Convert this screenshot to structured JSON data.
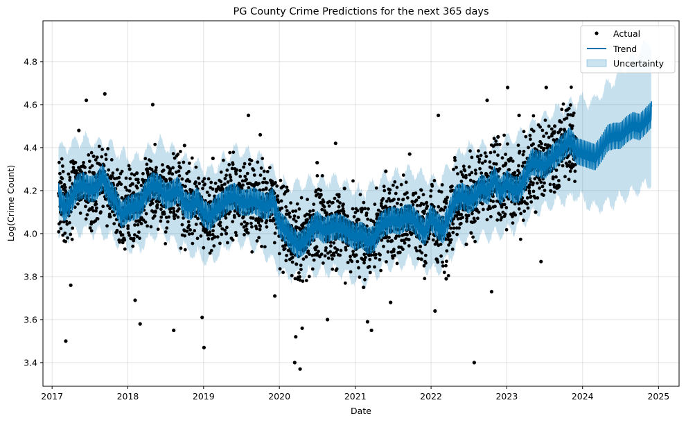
{
  "chart_data": {
    "type": "line",
    "title": "PG County Crime Predictions for the next 365 days",
    "xlabel": "Date",
    "ylabel": "Log(Crime Count)",
    "xlim": [
      "2016-11-18",
      "2025-04-10"
    ],
    "ylim": [
      3.29,
      4.99
    ],
    "grid": true,
    "legend_position": "top-right",
    "x_ticks": [
      "2017",
      "2018",
      "2019",
      "2020",
      "2021",
      "2022",
      "2023",
      "2024",
      "2025"
    ],
    "y_ticks": [
      "3.4",
      "3.6",
      "3.8",
      "4.0",
      "4.2",
      "4.4",
      "4.6",
      "4.8"
    ],
    "legend": [
      {
        "label": "Actual",
        "marker": "dot"
      },
      {
        "label": "Trend",
        "marker": "line"
      },
      {
        "label": "Uncertainty",
        "marker": "band"
      }
    ],
    "colors": {
      "actual": "#000000",
      "trend": "#0072b2",
      "uncertainty": "#0072b2"
    },
    "history_end": "2023-11-30",
    "forecast_end": "2024-11-29",
    "series": [
      {
        "name": "Trend",
        "x": [
          "2017-02-01",
          "2017-03-01",
          "2017-04-01",
          "2017-05-01",
          "2017-06-01",
          "2017-07-01",
          "2017-08-01",
          "2017-09-01",
          "2017-10-01",
          "2017-11-01",
          "2017-12-01",
          "2018-01-01",
          "2018-02-01",
          "2018-03-01",
          "2018-04-01",
          "2018-05-01",
          "2018-06-01",
          "2018-07-01",
          "2018-08-01",
          "2018-09-01",
          "2018-10-01",
          "2018-11-01",
          "2018-12-01",
          "2019-01-01",
          "2019-02-01",
          "2019-03-01",
          "2019-04-01",
          "2019-05-01",
          "2019-06-01",
          "2019-07-01",
          "2019-08-01",
          "2019-09-01",
          "2019-10-01",
          "2019-11-01",
          "2019-12-01",
          "2020-01-01",
          "2020-02-01",
          "2020-03-01",
          "2020-04-01",
          "2020-05-01",
          "2020-06-01",
          "2020-07-01",
          "2020-08-01",
          "2020-09-01",
          "2020-10-01",
          "2020-11-01",
          "2020-12-01",
          "2021-01-01",
          "2021-02-01",
          "2021-03-01",
          "2021-04-01",
          "2021-05-01",
          "2021-06-01",
          "2021-07-01",
          "2021-08-01",
          "2021-09-01",
          "2021-10-01",
          "2021-11-01",
          "2021-12-01",
          "2022-01-01",
          "2022-02-01",
          "2022-03-01",
          "2022-04-01",
          "2022-05-01",
          "2022-06-01",
          "2022-07-01",
          "2022-08-01",
          "2022-09-01",
          "2022-10-01",
          "2022-11-01",
          "2022-12-01",
          "2023-01-01",
          "2023-02-01",
          "2023-03-01",
          "2023-04-01",
          "2023-05-01",
          "2023-06-01",
          "2023-07-01",
          "2023-08-01",
          "2023-09-01",
          "2023-10-01",
          "2023-11-01",
          "2023-12-01",
          "2024-01-01",
          "2024-02-01",
          "2024-03-01",
          "2024-04-01",
          "2024-05-01",
          "2024-06-01",
          "2024-07-01",
          "2024-08-01",
          "2024-09-01",
          "2024-10-01",
          "2024-11-01",
          "2024-11-29"
        ],
        "y": [
          4.18,
          4.12,
          4.16,
          4.22,
          4.23,
          4.21,
          4.22,
          4.27,
          4.2,
          4.16,
          4.09,
          4.12,
          4.13,
          4.14,
          4.2,
          4.23,
          4.22,
          4.18,
          4.19,
          4.21,
          4.14,
          4.13,
          4.16,
          4.1,
          4.08,
          4.12,
          4.14,
          4.17,
          4.18,
          4.15,
          4.15,
          4.16,
          4.14,
          4.13,
          4.16,
          4.05,
          4.02,
          3.98,
          3.95,
          3.97,
          4.02,
          4.05,
          4.02,
          4.03,
          4.04,
          4.03,
          4.01,
          3.99,
          4.0,
          3.97,
          3.98,
          4.04,
          4.06,
          4.07,
          4.06,
          4.08,
          4.08,
          4.04,
          4.01,
          4.08,
          4.04,
          4.02,
          4.1,
          4.17,
          4.18,
          4.16,
          4.18,
          4.22,
          4.2,
          4.26,
          4.2,
          4.24,
          4.21,
          4.21,
          4.27,
          4.34,
          4.33,
          4.32,
          4.35,
          4.38,
          4.41,
          4.44,
          4.39,
          4.38,
          4.37,
          4.36,
          4.4,
          4.45,
          4.46,
          4.46,
          4.49,
          4.51,
          4.5,
          4.53,
          4.56
        ]
      },
      {
        "name": "Uncertainty",
        "x": [
          "2017-02-01",
          "2017-06-01",
          "2017-10-01",
          "2018-02-01",
          "2018-06-01",
          "2018-10-01",
          "2019-02-01",
          "2019-06-01",
          "2019-10-01",
          "2020-02-01",
          "2020-06-01",
          "2020-10-01",
          "2021-02-01",
          "2021-06-01",
          "2021-10-01",
          "2022-02-01",
          "2022-06-01",
          "2022-10-01",
          "2023-02-01",
          "2023-06-01",
          "2023-11-30",
          "2024-03-01",
          "2024-06-01",
          "2024-09-01",
          "2024-11-29"
        ],
        "lower": [
          3.97,
          4.02,
          3.99,
          3.92,
          4.01,
          3.93,
          3.87,
          3.97,
          3.93,
          3.8,
          3.82,
          3.83,
          3.77,
          3.85,
          3.87,
          3.82,
          3.97,
          3.99,
          4.02,
          4.11,
          4.18,
          4.12,
          4.15,
          4.19,
          4.24
        ],
        "upper": [
          4.39,
          4.44,
          4.41,
          4.34,
          4.43,
          4.35,
          4.29,
          4.39,
          4.35,
          4.22,
          4.24,
          4.25,
          4.19,
          4.27,
          4.29,
          4.24,
          4.39,
          4.41,
          4.44,
          4.53,
          4.62,
          4.62,
          4.72,
          4.82,
          4.9
        ]
      },
      {
        "name": "Actual",
        "x": [
          "2017-03-08",
          "2017-04-01",
          "2017-05-10",
          "2017-06-15",
          "2017-07-20",
          "2017-09-12",
          "2017-10-05",
          "2017-11-20",
          "2018-01-10",
          "2018-02-05",
          "2018-03-01",
          "2018-04-25",
          "2018-05-01",
          "2018-08-10",
          "2018-10-01",
          "2018-12-25",
          "2019-01-03",
          "2019-02-15",
          "2019-04-20",
          "2019-06-10",
          "2019-08-05",
          "2019-10-01",
          "2019-12-10",
          "2020-02-10",
          "2020-03-15",
          "2020-03-20",
          "2020-04-10",
          "2020-04-20",
          "2020-05-12",
          "2020-06-15",
          "2020-07-01",
          "2020-08-20",
          "2020-09-28",
          "2020-11-10",
          "2021-01-05",
          "2021-02-10",
          "2021-03-01",
          "2021-03-20",
          "2021-04-15",
          "2021-05-28",
          "2021-06-20",
          "2021-08-10",
          "2021-09-20",
          "2021-11-10",
          "2022-01-20",
          "2022-02-05",
          "2022-03-15",
          "2022-04-20",
          "2022-05-10",
          "2022-06-20",
          "2022-07-28",
          "2022-08-10",
          "2022-09-28",
          "2022-10-20",
          "2022-11-20",
          "2023-01-05",
          "2023-01-20",
          "2023-03-01",
          "2023-04-10",
          "2023-05-20",
          "2023-06-15",
          "2023-07-10",
          "2023-08-20",
          "2023-10-01",
          "2023-11-15"
        ],
        "y": [
          3.5,
          3.76,
          4.48,
          4.62,
          4.36,
          4.65,
          4.08,
          3.97,
          4.3,
          3.69,
          3.58,
          4.15,
          4.6,
          3.55,
          4.41,
          3.61,
          3.47,
          4.35,
          4.0,
          4.12,
          4.55,
          4.46,
          3.71,
          4.2,
          3.4,
          3.52,
          3.37,
          3.56,
          4.0,
          3.97,
          4.33,
          3.6,
          4.42,
          4.21,
          3.9,
          3.75,
          3.59,
          3.55,
          4.09,
          4.29,
          3.68,
          4.11,
          4.37,
          3.94,
          3.64,
          4.55,
          3.79,
          4.07,
          4.22,
          3.95,
          3.4,
          4.11,
          4.62,
          3.73,
          4.45,
          4.68,
          4.35,
          4.55,
          4.35,
          4.1,
          3.87,
          4.68,
          4.5,
          4.37,
          4.55
        ]
      }
    ]
  }
}
